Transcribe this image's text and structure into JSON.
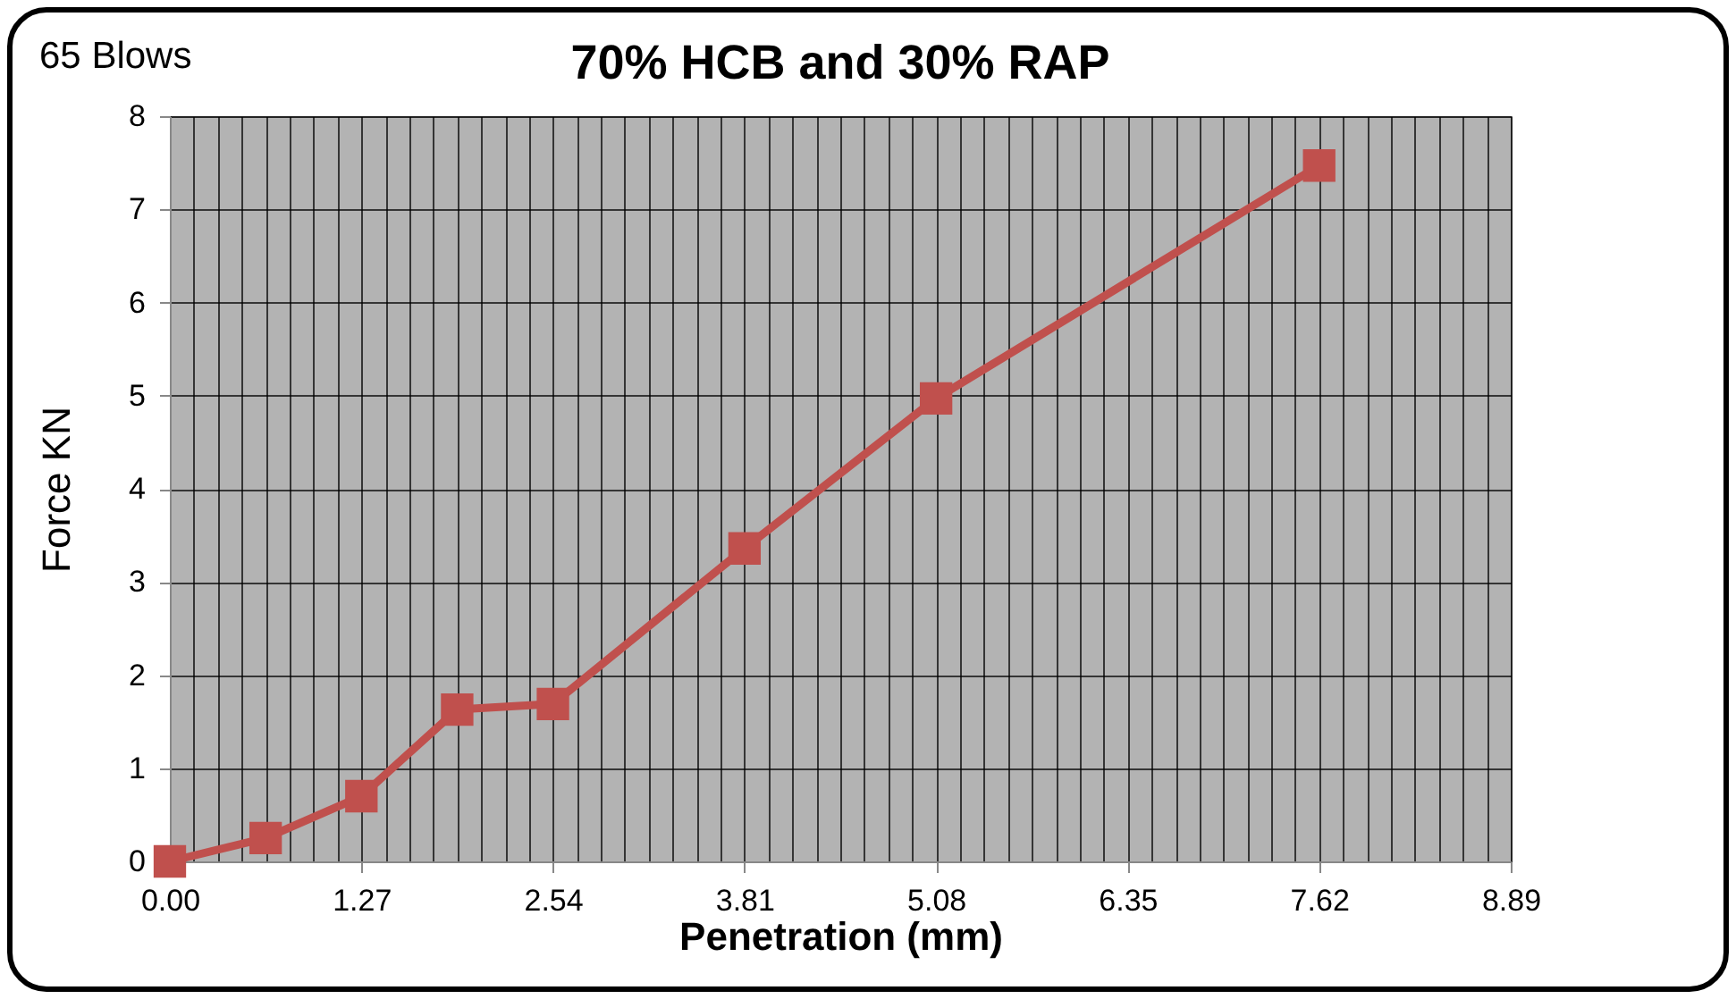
{
  "chart_data": {
    "type": "line",
    "title": "70% HCB and 30% RAP",
    "xlabel": "Penetration (mm)",
    "ylabel": "Force KN",
    "annotations": [
      "65 Blows"
    ],
    "x": [
      0,
      0.635,
      1.27,
      1.905,
      2.54,
      3.81,
      5.08,
      7.62
    ],
    "series": [
      {
        "color": "#c0504d",
        "values": [
          0,
          0.25,
          0.7,
          1.63,
          1.69,
          3.36,
          4.97,
          7.47
        ]
      }
    ],
    "xlim": [
      0,
      8.89
    ],
    "ylim": [
      0,
      8
    ],
    "xticks": [
      {
        "value": 0,
        "label": "0.00"
      },
      {
        "value": 0.15875,
        "label": null
      },
      {
        "value": 0.3175,
        "label": null
      },
      {
        "value": 0.47625,
        "label": null
      },
      {
        "value": 0.635,
        "label": null
      },
      {
        "value": 0.79375,
        "label": null
      },
      {
        "value": 0.9525,
        "label": null
      },
      {
        "value": 1.11125,
        "label": null
      },
      {
        "value": 1.27,
        "label": "1.27"
      },
      {
        "value": 1.42875,
        "label": null
      },
      {
        "value": 1.5875,
        "label": null
      },
      {
        "value": 1.74625,
        "label": null
      },
      {
        "value": 1.905,
        "label": null
      },
      {
        "value": 2.06375,
        "label": null
      },
      {
        "value": 2.2225,
        "label": null
      },
      {
        "value": 2.38125,
        "label": null
      },
      {
        "value": 2.54,
        "label": "2.54"
      },
      {
        "value": 2.69875,
        "label": null
      },
      {
        "value": 2.8575,
        "label": null
      },
      {
        "value": 3.01625,
        "label": null
      },
      {
        "value": 3.175,
        "label": null
      },
      {
        "value": 3.33375,
        "label": null
      },
      {
        "value": 3.4925,
        "label": null
      },
      {
        "value": 3.65125,
        "label": null
      },
      {
        "value": 3.81,
        "label": "3.81"
      },
      {
        "value": 3.96875,
        "label": null
      },
      {
        "value": 4.1275,
        "label": null
      },
      {
        "value": 4.28625,
        "label": null
      },
      {
        "value": 4.445,
        "label": null
      },
      {
        "value": 4.60375,
        "label": null
      },
      {
        "value": 4.7625,
        "label": null
      },
      {
        "value": 4.92125,
        "label": null
      },
      {
        "value": 5.08,
        "label": "5.08"
      },
      {
        "value": 5.23875,
        "label": null
      },
      {
        "value": 5.3975,
        "label": null
      },
      {
        "value": 5.55625,
        "label": null
      },
      {
        "value": 5.715,
        "label": null
      },
      {
        "value": 5.87375,
        "label": null
      },
      {
        "value": 6.0325,
        "label": null
      },
      {
        "value": 6.19125,
        "label": null
      },
      {
        "value": 6.35,
        "label": "6.35"
      },
      {
        "value": 6.50875,
        "label": null
      },
      {
        "value": 6.6675,
        "label": null
      },
      {
        "value": 6.82625,
        "label": null
      },
      {
        "value": 6.985,
        "label": null
      },
      {
        "value": 7.14375,
        "label": null
      },
      {
        "value": 7.3025,
        "label": null
      },
      {
        "value": 7.46125,
        "label": null
      },
      {
        "value": 7.62,
        "label": "7.62"
      },
      {
        "value": 7.77875,
        "label": null
      },
      {
        "value": 7.9375,
        "label": null
      },
      {
        "value": 8.09625,
        "label": null
      },
      {
        "value": 8.255,
        "label": null
      },
      {
        "value": 8.41375,
        "label": null
      },
      {
        "value": 8.5725,
        "label": null
      },
      {
        "value": 8.73125,
        "label": null
      },
      {
        "value": 8.89,
        "label": "8.89"
      }
    ],
    "yticks": [
      0,
      1,
      2,
      3,
      4,
      5,
      6,
      7,
      8
    ],
    "grid": true,
    "marker": "square",
    "line_style": "solid"
  }
}
